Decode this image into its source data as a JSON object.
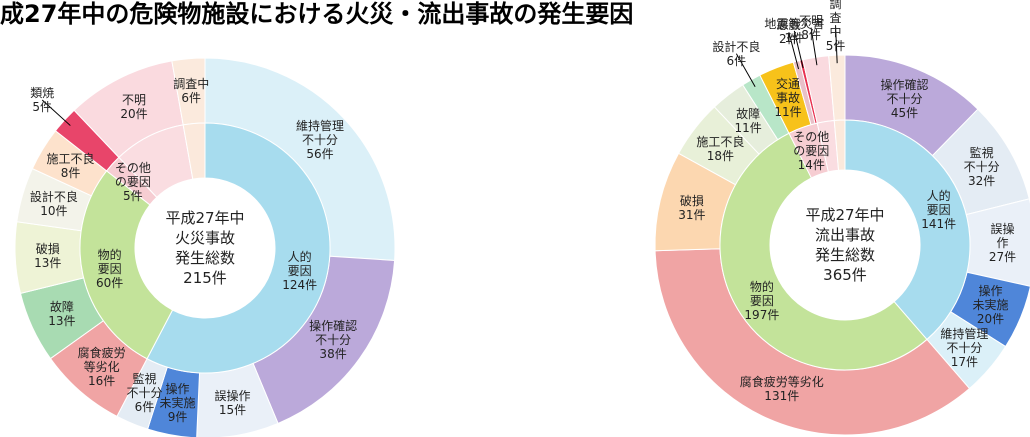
{
  "title": "成27年中の危険物施設における火災・流出事故の発生要因",
  "chart_data": [
    {
      "type": "donut",
      "center_label": "平成27年中\n火災事故\n発生総数\n215件",
      "inner": {
        "categories": [
          "人的\n要因",
          "物的\n要因",
          "その他\nの要因",
          null,
          null
        ],
        "values": [
          124,
          60,
          5,
          20,
          6
        ],
        "value_labels": [
          "124件",
          "60件",
          "5件",
          null,
          null
        ],
        "colors": [
          "#a7dcee",
          "#c3e39a",
          "#f6cdd2",
          "#fadde1",
          "#fbe9dc"
        ]
      },
      "outer": {
        "categories": [
          "維持管理\n不十分",
          "操作確認\n不十分",
          "誤操作",
          "操作\n未実施",
          "監視\n不十分",
          "腐食疲労\n等劣化",
          "故障",
          "破損",
          "設計不良",
          "施工不良",
          "類焼",
          "不明",
          "調査中"
        ],
        "values": [
          56,
          38,
          15,
          9,
          6,
          16,
          13,
          13,
          10,
          8,
          5,
          20,
          6
        ],
        "value_labels": [
          "56件",
          "38件",
          "15件",
          "9件",
          "6件",
          "16件",
          "13件",
          "13件",
          "10件",
          "8件",
          "5件",
          "20件",
          "6件"
        ],
        "colors": [
          "#dbf0f8",
          "#bba9da",
          "#eaf0f8",
          "#4f86d9",
          "#e4ecf4",
          "#f0a4a4",
          "#a8dbb2",
          "#eef3d6",
          "#f3f3ea",
          "#fde2cc",
          "#e8456a",
          "#fadadf",
          "#fbeadd"
        ]
      }
    },
    {
      "type": "donut",
      "center_label": "平成27年中\n流出事故\n発生総数\n365件",
      "inner": {
        "categories": [
          "人的\n要因",
          "物的\n要因",
          "その他\nの要因",
          null,
          null
        ],
        "values": [
          141,
          197,
          14,
          8,
          5
        ],
        "value_labels": [
          "141件",
          "197件",
          "14件",
          null,
          null
        ],
        "colors": [
          "#a7dcee",
          "#c3e39a",
          "#f6cdd2",
          "#fadde1",
          "#fbe9dc"
        ]
      },
      "outer": {
        "categories": [
          "操作確認\n不十分",
          "監視\n不十分",
          "誤操作",
          "操作\n未実施",
          "維持管理\n不十分",
          "腐食疲労等劣化",
          "破損",
          "施工不良",
          "故障",
          "設計不良",
          "交通\n事故",
          "悪戯",
          "地震等災害",
          "不明",
          "調\n査\n中"
        ],
        "values": [
          45,
          32,
          27,
          20,
          17,
          131,
          31,
          18,
          11,
          6,
          11,
          2,
          1,
          8,
          5
        ],
        "value_labels": [
          "45件",
          "32件",
          "27件",
          "20件",
          "17件",
          "131件",
          "31件",
          "18件",
          "11件",
          "6件",
          "11件",
          "2件",
          "1件",
          "8件",
          "5件"
        ],
        "colors": [
          "#bba9da",
          "#e4ecf4",
          "#eaf0f8",
          "#4f86d9",
          "#dbf0f8",
          "#f0a4a4",
          "#fcd7b0",
          "#e8f0d8",
          "#e6eedc",
          "#b8e6c8",
          "#f7c21a",
          "#e8c0c8",
          "#e8304f",
          "#fadadf",
          "#fbeadd"
        ]
      }
    }
  ]
}
